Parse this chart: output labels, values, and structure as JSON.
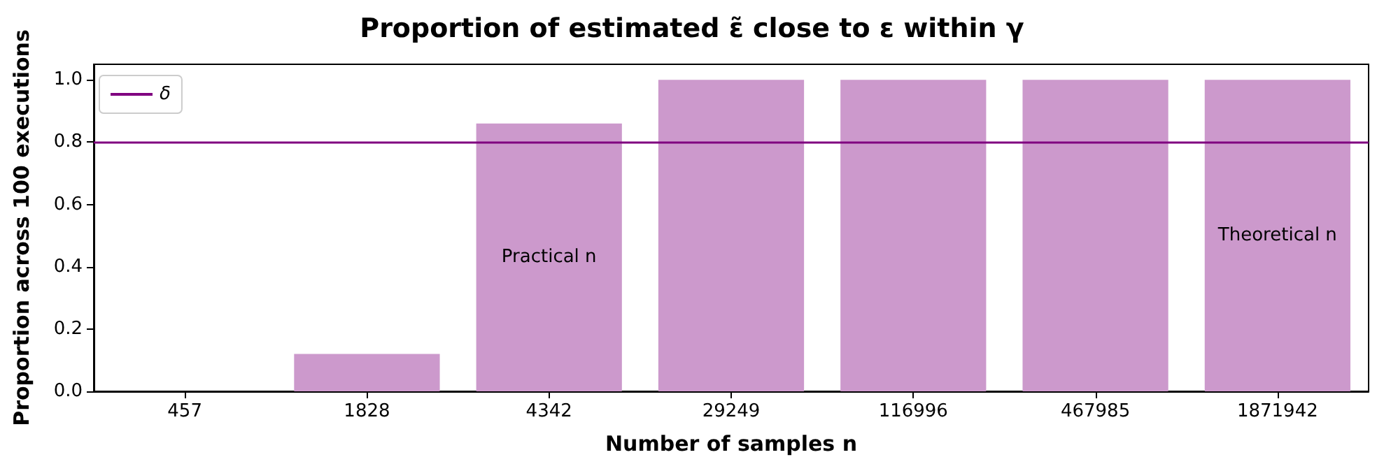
{
  "chart_data": {
    "type": "bar",
    "title": "Proportion of estimated ε̃ close to ε within γ",
    "xlabel": "Number of samples n",
    "ylabel": "Proportion across 100 executions",
    "categories": [
      "457",
      "1828",
      "4342",
      "29249",
      "116996",
      "467985",
      "1871942"
    ],
    "values": [
      0,
      0.12,
      0.86,
      1.0,
      1.0,
      1.0,
      1.0
    ],
    "color": "#cc99cc",
    "ylim": [
      0,
      1.05
    ],
    "yticks": [
      {
        "value": 0,
        "label": "0.0"
      },
      {
        "value": 0.2,
        "label": "0.2"
      },
      {
        "value": 0.4,
        "label": "0.4"
      },
      {
        "value": 0.6,
        "label": "0.6"
      },
      {
        "value": 0.8,
        "label": "0.8"
      },
      {
        "value": 1.0,
        "label": "1.0"
      }
    ],
    "ref_lines": [
      {
        "axis": "y",
        "value": 0.8,
        "label": "δ",
        "color": "#800080",
        "line_style": "solid"
      }
    ],
    "annotations": [
      "Practical n",
      "Theoretical n"
    ],
    "legend": "top left",
    "grid": false
  }
}
